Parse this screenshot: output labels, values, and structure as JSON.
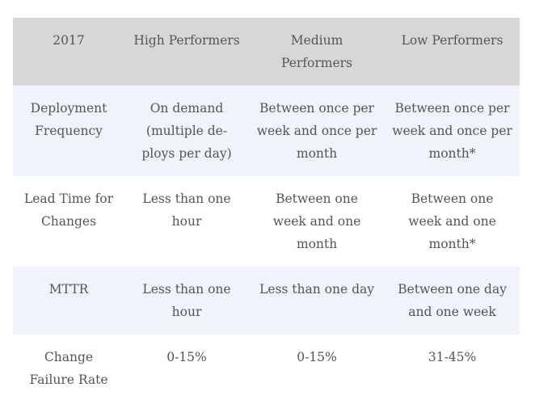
{
  "table": {
    "headers": [
      "2017",
      "High Performers",
      "Medium Performers",
      "Low Performers"
    ],
    "rows": [
      {
        "metric": "Deployment Frequency",
        "high": "On demand (multiple de-ploys per day)",
        "medium": "Between once per week and once per month",
        "low": "Between once per week and once per month*"
      },
      {
        "metric": "Lead Time for Changes",
        "high": "Less than one hour",
        "medium": "Between one week and one month",
        "low": "Between one week and one month*"
      },
      {
        "metric": "MTTR",
        "high": "Less than one hour",
        "medium": "Less than one day",
        "low": "Between one day and one week"
      },
      {
        "metric": "Change Failure Rate",
        "high": "0-15%",
        "medium": "0-15%",
        "low": "31-45%"
      }
    ]
  }
}
